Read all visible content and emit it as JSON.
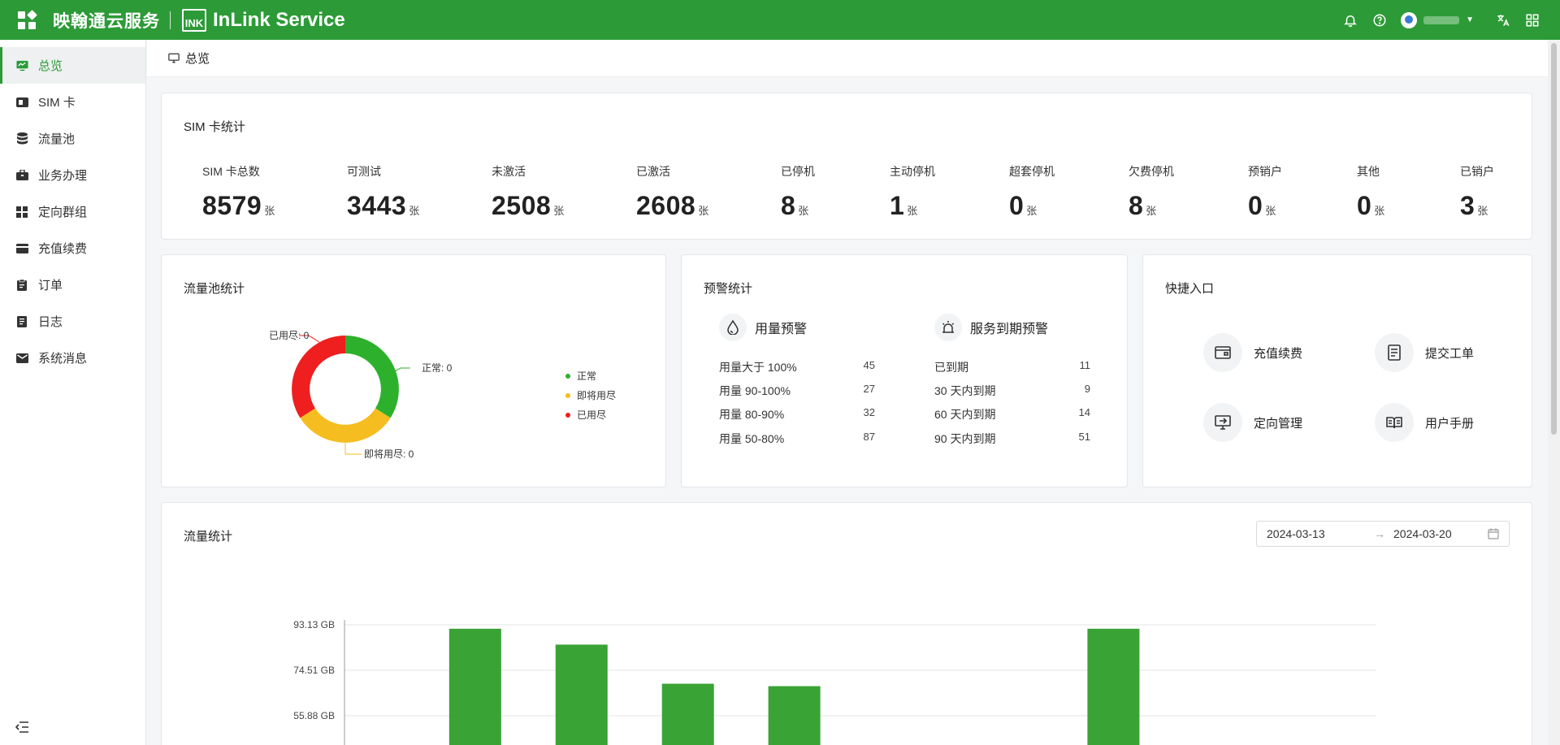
{
  "header": {
    "brand_cn": "映翰通云服务",
    "logo_text": "INK",
    "brand_en": "InLink Service",
    "icons": [
      "bell-icon",
      "help-icon",
      "translate-icon",
      "grid-icon"
    ]
  },
  "sidebar": {
    "items": [
      {
        "label": "总览",
        "icon": "monitor-icon",
        "active": true
      },
      {
        "label": "SIM 卡",
        "icon": "sim-card-icon"
      },
      {
        "label": "流量池",
        "icon": "database-icon"
      },
      {
        "label": "业务办理",
        "icon": "briefcase-icon"
      },
      {
        "label": "定向群组",
        "icon": "blocks-icon"
      },
      {
        "label": "充值续费",
        "icon": "card-icon"
      },
      {
        "label": "订单",
        "icon": "clipboard-icon"
      },
      {
        "label": "日志",
        "icon": "document-icon"
      },
      {
        "label": "系统消息",
        "icon": "mail-icon"
      }
    ]
  },
  "breadcrumb": {
    "label": "总览"
  },
  "sim_stats": {
    "title": "SIM 卡统计",
    "unit": "张",
    "items": [
      {
        "label": "SIM 卡总数",
        "value": "8579"
      },
      {
        "label": "可测试",
        "value": "3443"
      },
      {
        "label": "未激活",
        "value": "2508"
      },
      {
        "label": "已激活",
        "value": "2608"
      },
      {
        "label": "已停机",
        "value": "8"
      },
      {
        "label": "主动停机",
        "value": "1"
      },
      {
        "label": "超套停机",
        "value": "0"
      },
      {
        "label": "欠费停机",
        "value": "8"
      },
      {
        "label": "预销户",
        "value": "0"
      },
      {
        "label": "其他",
        "value": "0"
      },
      {
        "label": "已销户",
        "value": "3"
      }
    ]
  },
  "pool_stats": {
    "title": "流量池统计",
    "labels": {
      "normal": "正常: 0",
      "near": "即将用尽: 0",
      "used": "已用尽: 0"
    },
    "legend": [
      {
        "label": "正常",
        "color": "#2db12d"
      },
      {
        "label": "即将用尽",
        "color": "#f5bd1f"
      },
      {
        "label": "已用尽",
        "color": "#ef1f1f"
      }
    ]
  },
  "warnings": {
    "title": "预警统计",
    "usage": {
      "title": "用量预警",
      "rows": [
        {
          "label": "用量大于 100%",
          "value": "45"
        },
        {
          "label": "用量 90-100%",
          "value": "27"
        },
        {
          "label": "用量 80-90%",
          "value": "32"
        },
        {
          "label": "用量 50-80%",
          "value": "87"
        }
      ]
    },
    "expiry": {
      "title": "服务到期预警",
      "rows": [
        {
          "label": "已到期",
          "value": "11"
        },
        {
          "label": "30 天内到期",
          "value": "9"
        },
        {
          "label": "60 天内到期",
          "value": "14"
        },
        {
          "label": "90 天内到期",
          "value": "51"
        }
      ]
    }
  },
  "quick": {
    "title": "快捷入口",
    "items": [
      {
        "label": "充值续费",
        "icon": "wallet-icon"
      },
      {
        "label": "提交工单",
        "icon": "ticket-icon"
      },
      {
        "label": "定向管理",
        "icon": "screen-icon"
      },
      {
        "label": "用户手册",
        "icon": "book-icon"
      }
    ]
  },
  "traffic": {
    "title": "流量统计",
    "date_start": "2024-03-13",
    "date_end": "2024-03-20"
  },
  "chart_data": {
    "type": "bar",
    "categories": [
      "",
      "",
      "",
      "",
      "",
      "",
      ""
    ],
    "values": [
      91.5,
      85.0,
      69.0,
      68.0,
      0,
      0,
      91.5
    ],
    "ylabel": "",
    "ytick_labels": [
      "93.13 GB",
      "74.51 GB",
      "55.88 GB"
    ],
    "ytick_values": [
      93.13,
      74.51,
      55.88
    ],
    "color": "#3aa335"
  }
}
